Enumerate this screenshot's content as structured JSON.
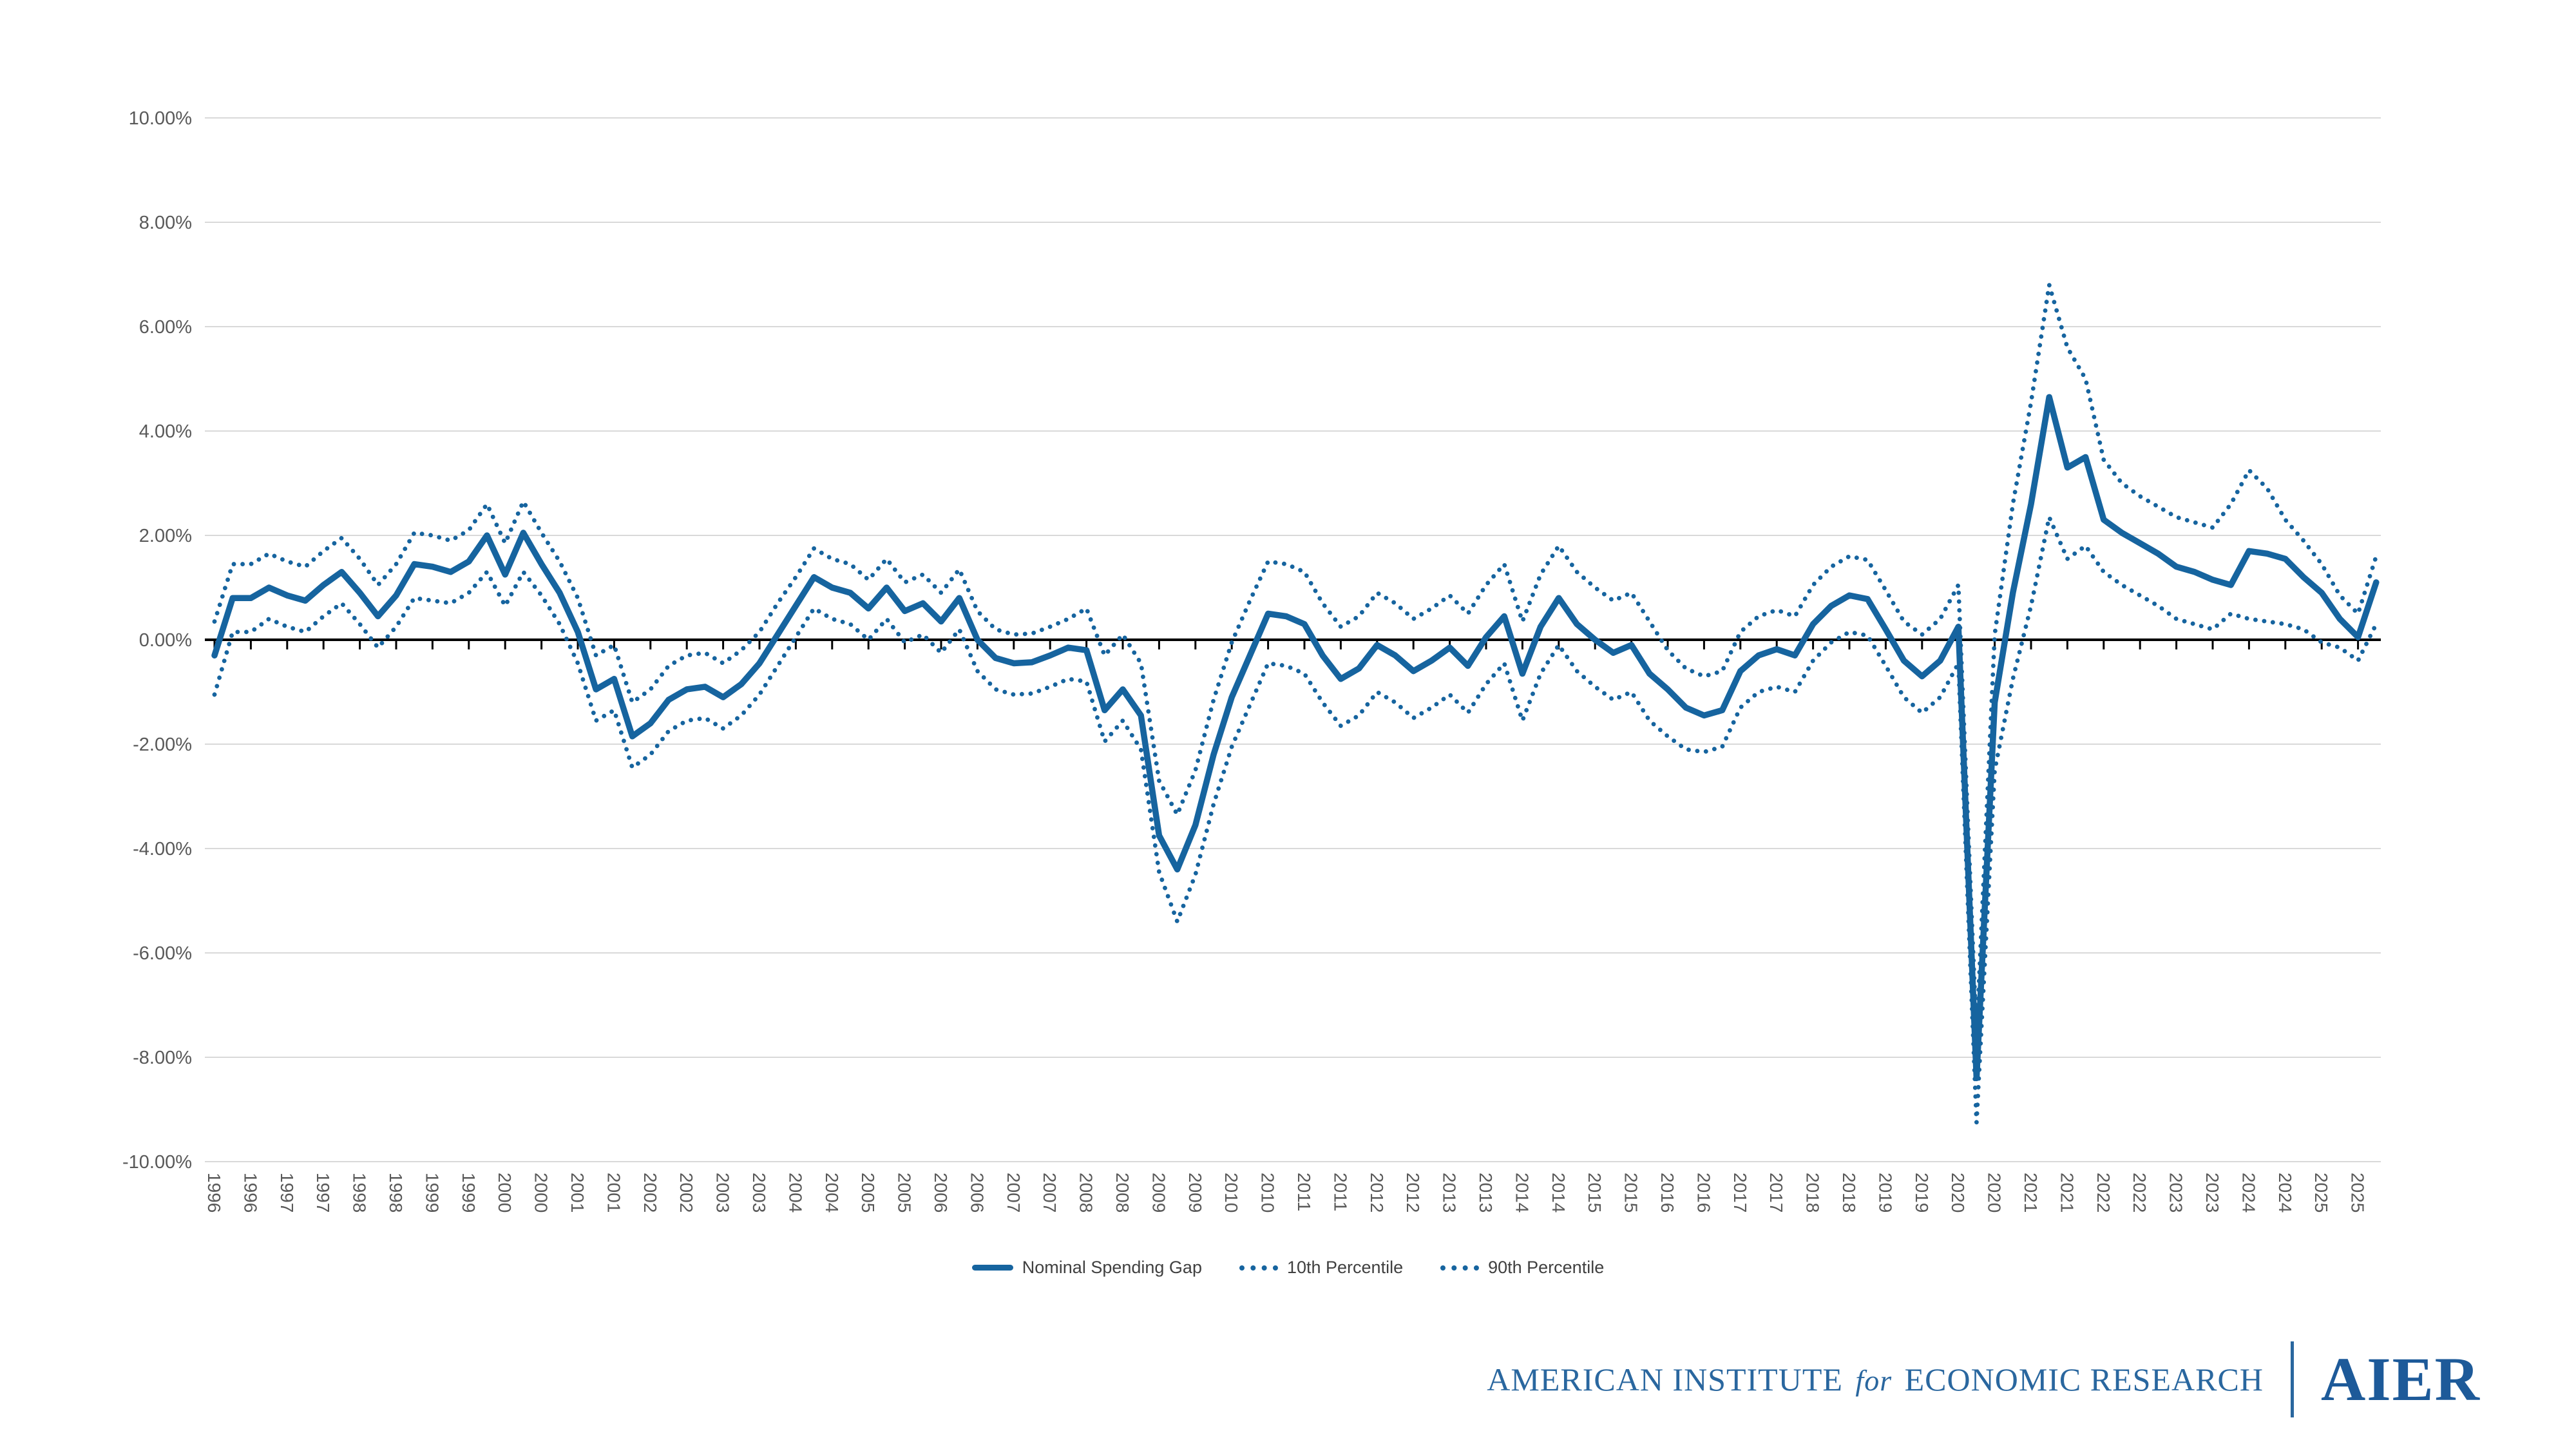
{
  "colors": {
    "line_blue": "#16649f",
    "grid_gray": "#d9d9d9",
    "zero_axis": "#000000",
    "axis_text": "#595959",
    "footer_text_blue": "#2a679f",
    "logo_blue": "#1d5a99",
    "background": "#ffffff"
  },
  "legend": {
    "items": [
      {
        "label": "Nominal Spending Gap",
        "style": "solid"
      },
      {
        "label": "10th Percentile",
        "style": "dotted"
      },
      {
        "label": "90th Percentile",
        "style": "dotted"
      }
    ]
  },
  "footer": {
    "institute_part1": "AMERICAN INSTITUTE",
    "institute_for": "for",
    "institute_part2": "ECONOMIC RESEARCH",
    "logo": "AIER"
  },
  "chart_data": {
    "type": "line",
    "title": "",
    "xlabel": "",
    "ylabel": "",
    "x_unit": "quarterly, 1996Q1 - 2025Q4, year labels shown every 2 quarters",
    "ylim": [
      -10,
      10
    ],
    "grid": "horizontal",
    "legend_position": "bottom-center",
    "y_tick_labels": [
      "10.00%",
      "8.00%",
      "6.00%",
      "4.00%",
      "2.00%",
      "0.00%",
      "-2.00%",
      "-4.00%",
      "-6.00%",
      "-8.00%",
      "-10.00%"
    ],
    "x_labels": [
      "1996",
      "1996",
      "1997",
      "1997",
      "1998",
      "1998",
      "1999",
      "1999",
      "2000",
      "2000",
      "2001",
      "2001",
      "2002",
      "2002",
      "2003",
      "2003",
      "2004",
      "2004",
      "2005",
      "2005",
      "2006",
      "2006",
      "2007",
      "2007",
      "2008",
      "2008",
      "2009",
      "2009",
      "2010",
      "2010",
      "2011",
      "2011",
      "2012",
      "2012",
      "2013",
      "2013",
      "2014",
      "2014",
      "2015",
      "2015",
      "2016",
      "2016",
      "2017",
      "2017",
      "2018",
      "2018",
      "2019",
      "2019",
      "2020",
      "2020",
      "2021",
      "2021",
      "2022",
      "2022",
      "2023",
      "2023",
      "2024",
      "2024",
      "2025",
      "2025"
    ],
    "series": [
      {
        "name": "Nominal Spending Gap",
        "style": "solid",
        "values": [
          -0.3,
          0.8,
          0.8,
          1.0,
          0.85,
          0.75,
          1.05,
          1.3,
          0.9,
          0.45,
          0.85,
          1.45,
          1.4,
          1.3,
          1.5,
          2.0,
          1.25,
          2.05,
          1.45,
          0.9,
          0.15,
          -0.95,
          -0.75,
          -1.85,
          -1.6,
          -1.15,
          -0.95,
          -0.9,
          -1.1,
          -0.85,
          -0.45,
          0.1,
          0.65,
          1.2,
          1.0,
          0.9,
          0.6,
          1.0,
          0.55,
          0.7,
          0.35,
          0.8,
          0.0,
          -0.35,
          -0.45,
          -0.43,
          -0.3,
          -0.15,
          -0.2,
          -1.35,
          -0.95,
          -1.45,
          -3.75,
          -4.4,
          -3.55,
          -2.2,
          -1.1,
          -0.3,
          0.5,
          0.45,
          0.3,
          -0.3,
          -0.75,
          -0.55,
          -0.1,
          -0.3,
          -0.6,
          -0.4,
          -0.15,
          -0.5,
          0.05,
          0.45,
          -0.65,
          0.25,
          0.8,
          0.3,
          0.0,
          -0.25,
          -0.1,
          -0.65,
          -0.95,
          -1.3,
          -1.45,
          -1.35,
          -0.6,
          -0.3,
          -0.18,
          -0.3,
          0.3,
          0.65,
          0.85,
          0.78,
          0.2,
          -0.4,
          -0.7,
          -0.4,
          0.25,
          -8.4,
          -1.2,
          0.9,
          2.6,
          4.65,
          3.3,
          3.5,
          2.3,
          2.05,
          1.85,
          1.65,
          1.4,
          1.3,
          1.15,
          1.05,
          1.7,
          1.65,
          1.55,
          1.2,
          0.9,
          0.4,
          0.05,
          1.1
        ]
      },
      {
        "name": "10th Percentile",
        "style": "dotted",
        "values": [
          -1.05,
          0.15,
          0.15,
          0.4,
          0.25,
          0.15,
          0.45,
          0.7,
          0.3,
          -0.15,
          0.25,
          0.8,
          0.75,
          0.7,
          0.9,
          1.3,
          0.65,
          1.3,
          0.85,
          0.3,
          -0.45,
          -1.55,
          -1.35,
          -2.45,
          -2.2,
          -1.75,
          -1.55,
          -1.5,
          -1.7,
          -1.45,
          -1.05,
          -0.5,
          0.05,
          0.6,
          0.4,
          0.3,
          0.0,
          0.4,
          -0.05,
          0.1,
          -0.25,
          0.2,
          -0.6,
          -0.95,
          -1.05,
          -1.03,
          -0.9,
          -0.75,
          -0.8,
          -1.95,
          -1.55,
          -2.1,
          -4.45,
          -5.4,
          -4.5,
          -3.15,
          -2.05,
          -1.25,
          -0.45,
          -0.5,
          -0.65,
          -1.2,
          -1.65,
          -1.45,
          -1.0,
          -1.2,
          -1.5,
          -1.3,
          -1.05,
          -1.4,
          -0.85,
          -0.45,
          -1.55,
          -0.65,
          -0.1,
          -0.6,
          -0.9,
          -1.15,
          -1.0,
          -1.55,
          -1.85,
          -2.1,
          -2.15,
          -2.05,
          -1.3,
          -1.0,
          -0.9,
          -1.0,
          -0.4,
          -0.05,
          0.15,
          0.08,
          -0.5,
          -1.1,
          -1.4,
          -1.1,
          -0.45,
          -9.25,
          -2.5,
          -0.75,
          0.65,
          2.35,
          1.55,
          1.8,
          1.3,
          1.05,
          0.85,
          0.65,
          0.4,
          0.3,
          0.2,
          0.5,
          0.4,
          0.35,
          0.3,
          0.2,
          -0.05,
          -0.15,
          -0.4,
          0.3
        ]
      },
      {
        "name": "90th Percentile",
        "style": "dotted",
        "values": [
          0.35,
          1.45,
          1.45,
          1.65,
          1.5,
          1.4,
          1.7,
          1.95,
          1.55,
          1.05,
          1.45,
          2.05,
          2.0,
          1.9,
          2.1,
          2.6,
          1.85,
          2.65,
          2.05,
          1.5,
          0.8,
          -0.3,
          -0.1,
          -1.2,
          -0.95,
          -0.5,
          -0.3,
          -0.25,
          -0.45,
          -0.2,
          0.15,
          0.7,
          1.2,
          1.75,
          1.55,
          1.45,
          1.15,
          1.55,
          1.1,
          1.25,
          0.9,
          1.35,
          0.55,
          0.2,
          0.1,
          0.12,
          0.25,
          0.4,
          0.6,
          -0.3,
          0.1,
          -0.45,
          -2.7,
          -3.35,
          -2.5,
          -1.15,
          -0.05,
          0.75,
          1.5,
          1.45,
          1.3,
          0.7,
          0.25,
          0.45,
          0.9,
          0.7,
          0.4,
          0.6,
          0.85,
          0.5,
          1.05,
          1.45,
          0.35,
          1.25,
          1.8,
          1.3,
          1.0,
          0.75,
          0.9,
          0.35,
          -0.2,
          -0.55,
          -0.7,
          -0.6,
          0.15,
          0.45,
          0.57,
          0.45,
          1.05,
          1.4,
          1.6,
          1.53,
          0.95,
          0.35,
          0.1,
          0.4,
          1.05,
          -7.6,
          0.1,
          2.6,
          4.55,
          6.8,
          5.6,
          5.0,
          3.45,
          3.0,
          2.75,
          2.55,
          2.35,
          2.25,
          2.15,
          2.6,
          3.25,
          2.9,
          2.3,
          1.9,
          1.45,
          0.85,
          0.5,
          1.6
        ]
      }
    ]
  }
}
